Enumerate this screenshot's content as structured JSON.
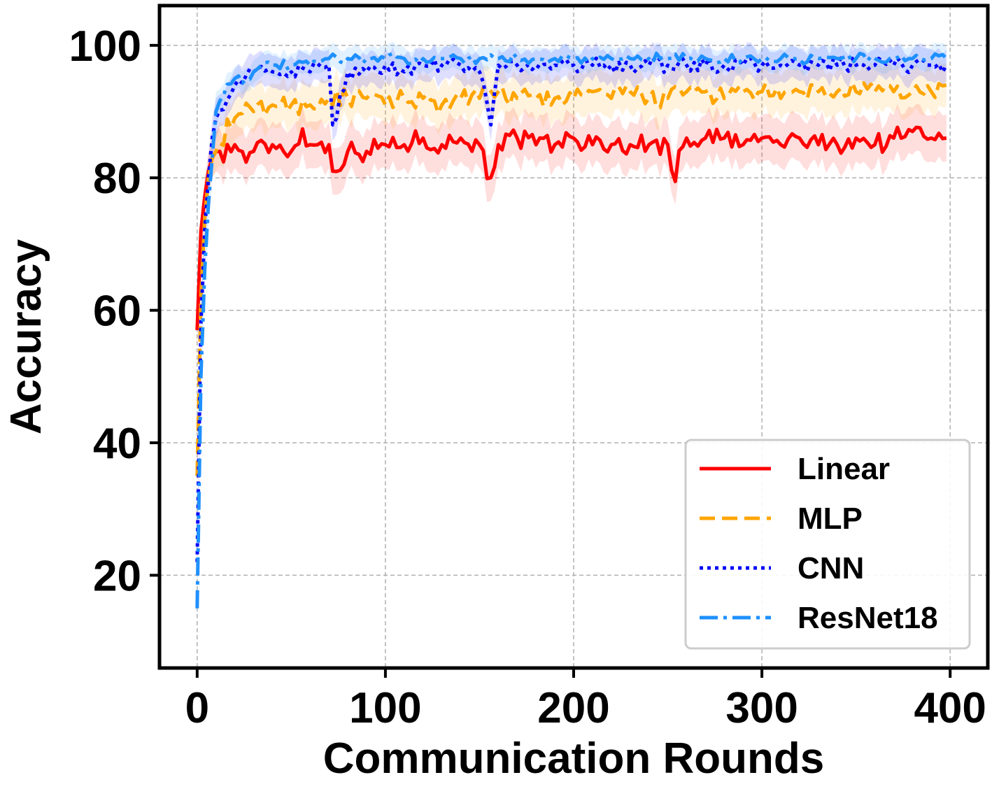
{
  "chart_data": {
    "type": "line",
    "title": "",
    "xlabel": "Communication Rounds",
    "ylabel": "Accuracy",
    "xlim": [
      -20,
      420
    ],
    "ylim": [
      6,
      106
    ],
    "xticks": [
      0,
      100,
      200,
      300,
      400
    ],
    "yticks": [
      20,
      40,
      60,
      80,
      100
    ],
    "grid": true,
    "legend_position": "lower-right",
    "series": [
      {
        "name": "Linear",
        "color": "#ff0000",
        "line_style": "solid",
        "x": [
          0,
          2,
          4,
          6,
          8,
          10,
          15,
          20,
          25,
          30,
          40,
          50,
          55,
          60,
          70,
          72,
          80,
          90,
          100,
          110,
          120,
          130,
          140,
          150,
          155,
          160,
          170,
          180,
          190,
          200,
          210,
          220,
          230,
          240,
          250,
          253,
          260,
          270,
          280,
          290,
          300,
          310,
          320,
          330,
          340,
          350,
          360,
          370,
          380,
          390,
          393,
          398
        ],
        "y": [
          57,
          72,
          77,
          81,
          83,
          84,
          84,
          85,
          83,
          84,
          85,
          84,
          87,
          85,
          85,
          81,
          84,
          84,
          85,
          85,
          86,
          85,
          86,
          85,
          80,
          85,
          86,
          85,
          85,
          86,
          85,
          85,
          85,
          85,
          85,
          80,
          86,
          86,
          86,
          85,
          86,
          85,
          86,
          85,
          85,
          86,
          85,
          86,
          87,
          86,
          88,
          86
        ]
      },
      {
        "name": "MLP",
        "color": "#ffa500",
        "line_style": "dashed",
        "x": [
          0,
          2,
          4,
          6,
          8,
          10,
          15,
          20,
          25,
          30,
          40,
          50,
          60,
          70,
          80,
          90,
          100,
          110,
          120,
          130,
          140,
          150,
          160,
          170,
          180,
          190,
          200,
          210,
          220,
          230,
          240,
          250,
          260,
          270,
          280,
          290,
          300,
          310,
          320,
          330,
          340,
          350,
          360,
          370,
          380,
          390,
          398
        ],
        "y": [
          35,
          62,
          74,
          80,
          83,
          84,
          87,
          89,
          90,
          90,
          91,
          91,
          91,
          92,
          92,
          92,
          91,
          92,
          92,
          91,
          92,
          92,
          93,
          92,
          92,
          92,
          92,
          93,
          92,
          93,
          92,
          92,
          93,
          93,
          92,
          93,
          93,
          92,
          93,
          93,
          93,
          93,
          93,
          93,
          93,
          93,
          94
        ]
      },
      {
        "name": "CNN",
        "color": "#0000ff",
        "line_style": "dotted",
        "x": [
          0,
          2,
          4,
          6,
          8,
          10,
          15,
          20,
          25,
          30,
          40,
          50,
          60,
          70,
          72,
          80,
          90,
          100,
          110,
          120,
          130,
          140,
          150,
          156,
          160,
          170,
          180,
          190,
          200,
          210,
          220,
          230,
          240,
          250,
          260,
          270,
          280,
          290,
          300,
          310,
          320,
          330,
          340,
          350,
          360,
          370,
          380,
          390,
          398
        ],
        "y": [
          22,
          58,
          72,
          80,
          86,
          89,
          92,
          94,
          95,
          96,
          96,
          96,
          96,
          97,
          88,
          96,
          96,
          97,
          96,
          97,
          97,
          97,
          96,
          88,
          97,
          97,
          97,
          97,
          97,
          97,
          97,
          97,
          97,
          97,
          97,
          97,
          97,
          97,
          97,
          97,
          97,
          97,
          97,
          97,
          97,
          97,
          97,
          97,
          97
        ]
      },
      {
        "name": "ResNet18",
        "color": "#1e90ff",
        "line_style": "dashdot",
        "x": [
          0,
          2,
          4,
          6,
          8,
          10,
          15,
          20,
          25,
          30,
          40,
          50,
          60,
          70,
          80,
          90,
          100,
          110,
          120,
          130,
          140,
          150,
          160,
          170,
          180,
          190,
          200,
          210,
          220,
          230,
          240,
          250,
          260,
          270,
          280,
          290,
          300,
          310,
          320,
          330,
          340,
          350,
          360,
          370,
          380,
          390,
          398
        ],
        "y": [
          15,
          50,
          66,
          76,
          83,
          90,
          94,
          95,
          95,
          96,
          97,
          97,
          97,
          98,
          98,
          98,
          98,
          98,
          98,
          98,
          98,
          98,
          98,
          98,
          98,
          98,
          98,
          98,
          98,
          98,
          98,
          98,
          98,
          98,
          98,
          98,
          98,
          98,
          98,
          98,
          98,
          98,
          98,
          98,
          98,
          98,
          98
        ]
      }
    ]
  }
}
